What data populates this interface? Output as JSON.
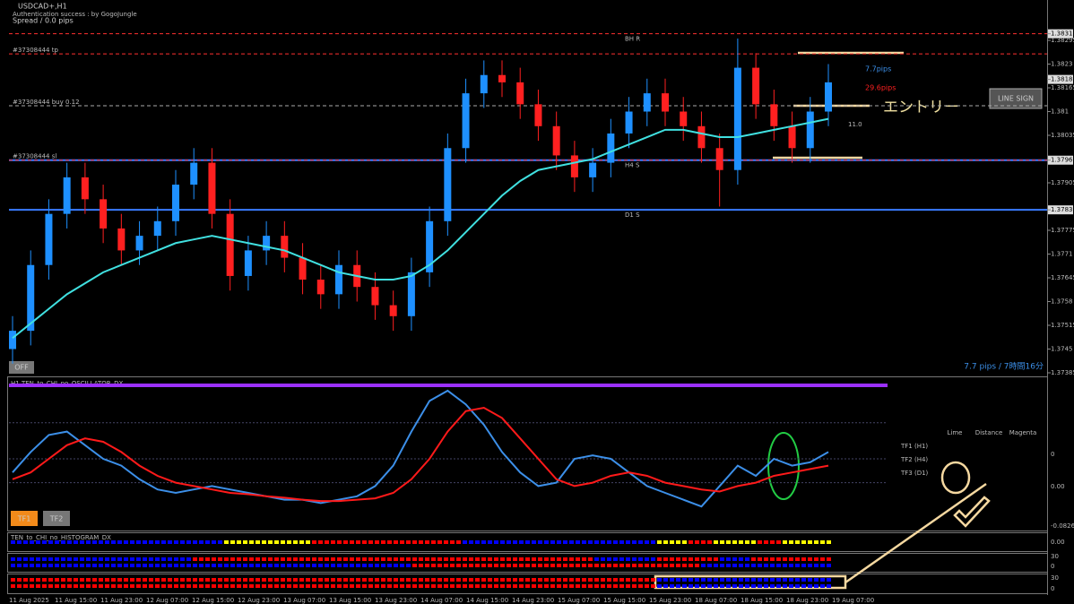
{
  "header": {
    "symbol": "USDCAD+,H1",
    "auth": "Authentication success : by GogoJungle",
    "spread": "Spread / 0.0 pips"
  },
  "price": {
    "yticks": [
      1.38313,
      1.38295,
      1.3823,
      1.38188,
      1.38165,
      1.381,
      1.38035,
      1.37967,
      1.37905,
      1.37831,
      1.37775,
      1.3771,
      1.37645,
      1.3758,
      1.37515,
      1.3745,
      1.37385
    ],
    "highlighted_ticks": [
      0,
      3,
      7,
      9
    ],
    "open": [
      1.3745,
      1.375,
      1.3768,
      1.3782,
      1.3792,
      1.3786,
      1.3778,
      1.3772,
      1.3776,
      1.378,
      1.379,
      1.3796,
      1.3782,
      1.3765,
      1.3772,
      1.3776,
      1.377,
      1.3764,
      1.376,
      1.3768,
      1.3762,
      1.3757,
      1.3754,
      1.3766,
      1.378,
      1.38,
      1.3815,
      1.382,
      1.3818,
      1.3812,
      1.3806,
      1.3798,
      1.3792,
      1.3796,
      1.3804,
      1.381,
      1.3815,
      1.381,
      1.3806,
      1.38,
      1.3794,
      1.3822,
      1.3812,
      1.3806,
      1.38,
      1.381
    ],
    "high": [
      1.3754,
      1.3772,
      1.3786,
      1.3796,
      1.3796,
      1.379,
      1.3782,
      1.378,
      1.3784,
      1.3794,
      1.38,
      1.38,
      1.3786,
      1.3776,
      1.378,
      1.378,
      1.3774,
      1.3768,
      1.3772,
      1.3772,
      1.3766,
      1.3761,
      1.377,
      1.3784,
      1.3804,
      1.3819,
      1.3824,
      1.3824,
      1.3822,
      1.3816,
      1.381,
      1.3802,
      1.38,
      1.3808,
      1.3814,
      1.3819,
      1.3819,
      1.3814,
      1.381,
      1.3804,
      1.383,
      1.3826,
      1.3816,
      1.381,
      1.3814,
      1.3823
    ],
    "low": [
      1.3741,
      1.3746,
      1.3764,
      1.3778,
      1.3782,
      1.3774,
      1.3768,
      1.3768,
      1.3772,
      1.3776,
      1.3786,
      1.3778,
      1.3761,
      1.3761,
      1.3768,
      1.3766,
      1.376,
      1.3756,
      1.3756,
      1.3758,
      1.3753,
      1.375,
      1.375,
      1.3762,
      1.3776,
      1.3796,
      1.3811,
      1.3814,
      1.3808,
      1.3802,
      1.3794,
      1.3788,
      1.3788,
      1.3792,
      1.38,
      1.3806,
      1.3806,
      1.3802,
      1.3796,
      1.3784,
      1.379,
      1.3808,
      1.3802,
      1.3796,
      1.3796,
      1.3806
    ],
    "close": [
      1.375,
      1.3768,
      1.3782,
      1.3792,
      1.3786,
      1.3778,
      1.3772,
      1.3776,
      1.378,
      1.379,
      1.3796,
      1.3782,
      1.3765,
      1.3772,
      1.3776,
      1.377,
      1.3764,
      1.376,
      1.3768,
      1.3762,
      1.3757,
      1.3754,
      1.3766,
      1.378,
      1.38,
      1.3815,
      1.382,
      1.3818,
      1.3812,
      1.3806,
      1.3798,
      1.3792,
      1.3796,
      1.3804,
      1.381,
      1.3815,
      1.381,
      1.3806,
      1.38,
      1.3794,
      1.3822,
      1.3812,
      1.3806,
      1.38,
      1.381,
      1.3818
    ],
    "ma": [
      1.3748,
      1.3752,
      1.3756,
      1.376,
      1.3763,
      1.3766,
      1.3768,
      1.377,
      1.3772,
      1.3774,
      1.3775,
      1.3776,
      1.3775,
      1.3774,
      1.3773,
      1.3772,
      1.377,
      1.3768,
      1.3766,
      1.3765,
      1.3764,
      1.3764,
      1.3765,
      1.3768,
      1.3772,
      1.3777,
      1.3782,
      1.3787,
      1.3791,
      1.3794,
      1.3795,
      1.3796,
      1.3797,
      1.3799,
      1.3801,
      1.3803,
      1.3805,
      1.3805,
      1.3804,
      1.3803,
      1.3803,
      1.3804,
      1.3805,
      1.3806,
      1.3807,
      1.3808
    ],
    "ma_color": "#40e0e0",
    "bull_color": "#1e90ff",
    "bear_color": "#ff2020",
    "levels": [
      {
        "label": "BH R",
        "value": 1.38313,
        "color": "#ff3030"
      },
      {
        "label": "#37308444 tp",
        "value": 1.38258,
        "color": "#ff3030"
      },
      {
        "label": "#37308444 buy 0.12",
        "value": 1.38116,
        "color": "#aaaaaa"
      },
      {
        "label": "#37308444 sl",
        "value": 1.37967,
        "color": "#3a7bff"
      },
      {
        "label": "H4 S",
        "value": 1.37967,
        "color": "#ff3030"
      },
      {
        "label": "D1 S",
        "value": 1.37831,
        "color": "#3a7bff"
      }
    ],
    "pips_up": "7.7pips",
    "pips_down": "29.6pips",
    "entry": "エントリー",
    "distance": "11.0",
    "line_sign": "LINE SIGN",
    "status": "7.7 pips / 7時間16分",
    "off": "OFF"
  },
  "oscillator": {
    "title": "H1 TEN_to_CHI_no_OSCILLATOR_DX",
    "ylim": [
      -100,
      100
    ],
    "labels": [
      "0",
      "0.00",
      "-0.0826"
    ],
    "series": [
      {
        "color": "#3c8fe8",
        "values": [
          -20,
          10,
          35,
          40,
          20,
          0,
          -10,
          -30,
          -45,
          -50,
          -45,
          -40,
          -45,
          -50,
          -55,
          -60,
          -60,
          -65,
          -60,
          -55,
          -40,
          -10,
          40,
          85,
          100,
          80,
          50,
          10,
          -20,
          -40,
          -35,
          0,
          5,
          0,
          -20,
          -40,
          -50,
          -60,
          -70,
          -40,
          -10,
          -25,
          0,
          -10,
          -5,
          10
        ]
      },
      {
        "color": "#ff1a1a",
        "values": [
          -30,
          -20,
          0,
          20,
          30,
          25,
          10,
          -10,
          -25,
          -35,
          -40,
          -45,
          -50,
          -52,
          -55,
          -57,
          -60,
          -62,
          -62,
          -60,
          -58,
          -50,
          -30,
          0,
          40,
          70,
          75,
          60,
          30,
          0,
          -30,
          -40,
          -35,
          -25,
          -20,
          -25,
          -35,
          -40,
          -45,
          -48,
          -40,
          -35,
          -25,
          -20,
          -15,
          -10
        ]
      }
    ],
    "tf1": "TF1",
    "tf2": "TF2",
    "cols": [
      "Lime",
      "Distance",
      "Magenta"
    ],
    "rows": [
      "TF1 (H1)",
      "TF2 (H4)",
      "TF3 (D1)"
    ]
  },
  "histogram": {
    "title": "TEN_to_CHI_no_HISTOGRAM_DX",
    "labels": [
      "0.00",
      "30",
      "0",
      "30",
      "0"
    ],
    "rows": [
      [
        [
          [
            "#0000ff",
            34
          ],
          [
            "#ffff00",
            14
          ],
          [
            "#ff0000",
            24
          ],
          [
            "#0000ff",
            31
          ],
          [
            "#ffff00",
            5
          ],
          [
            "#ff0000",
            4
          ],
          [
            "#ffff00",
            7
          ],
          [
            "#ff0000",
            4
          ],
          [
            "#ffff00",
            8
          ]
        ]
      ],
      [
        [
          [
            "#0000ff",
            29
          ],
          [
            "#ff0000",
            64
          ],
          [
            "#0000ff",
            10
          ],
          [
            "#ff0000",
            10
          ],
          [
            "#0000ff",
            5
          ],
          [
            "#ff0000",
            13
          ]
        ],
        [
          [
            "#0000ff",
            64
          ],
          [
            "#ff0000",
            46
          ],
          [
            "#0000ff",
            21
          ]
        ]
      ],
      [
        [
          [
            "#ff0000",
            103
          ],
          [
            "#0000ff",
            28
          ]
        ],
        [
          [
            "#ff0000",
            103
          ],
          [
            "#0000ff",
            28
          ]
        ]
      ]
    ]
  },
  "dates": [
    "11 Aug 2025",
    "11 Aug 15:00",
    "11 Aug 23:00",
    "12 Aug 07:00",
    "12 Aug 15:00",
    "12 Aug 23:00",
    "13 Aug 07:00",
    "13 Aug 15:00",
    "13 Aug 23:00",
    "14 Aug 07:00",
    "14 Aug 15:00",
    "14 Aug 23:00",
    "15 Aug 07:00",
    "15 Aug 15:00",
    "15 Aug 23:00",
    "18 Aug 07:00",
    "18 Aug 15:00",
    "18 Aug 23:00",
    "19 Aug 07:00"
  ]
}
